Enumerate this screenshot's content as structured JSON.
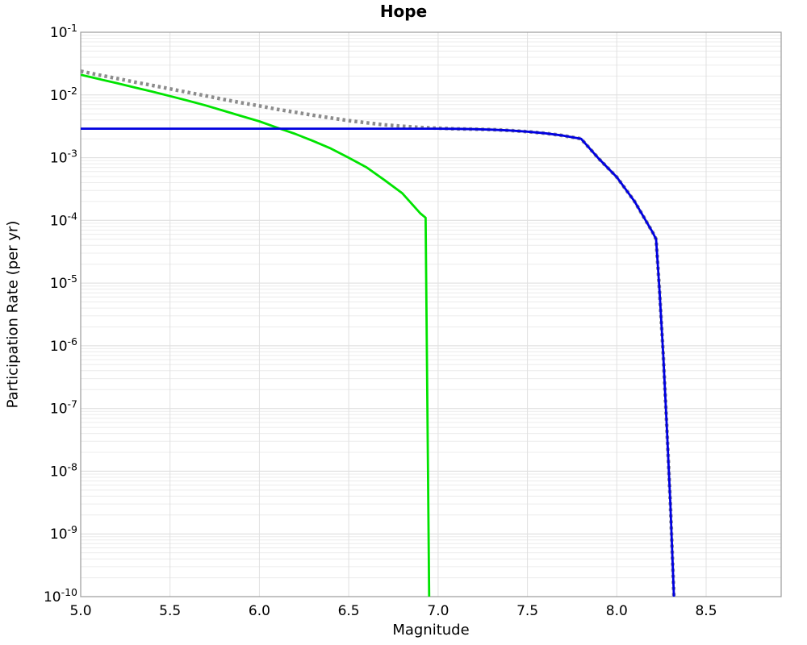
{
  "chart_data": {
    "type": "line",
    "title": "Hope",
    "xlabel": "Magnitude",
    "ylabel": "Participation Rate (per yr)",
    "legend": "none",
    "grid": {
      "major": true,
      "minor": true
    },
    "x_axis": {
      "min": 5.0,
      "max": 8.92,
      "scale": "linear",
      "ticks": [
        5.0,
        5.5,
        6.0,
        6.5,
        7.0,
        7.5,
        8.0,
        8.5
      ],
      "tick_labels": [
        "5.0",
        "5.5",
        "6.0",
        "6.5",
        "7.0",
        "7.5",
        "8.0",
        "8.5"
      ]
    },
    "y_axis": {
      "min": 1e-10,
      "max": 0.1,
      "scale": "log",
      "tick_exponents": [
        -1,
        -2,
        -3,
        -4,
        -5,
        -6,
        -7,
        -8,
        -9,
        -10
      ],
      "tick_base": "10"
    },
    "series": [
      {
        "name": "gray-dotted-total",
        "color": "#8c8c8c",
        "style": "dotted",
        "width": 4.5,
        "points": [
          [
            5.0,
            0.0239
          ],
          [
            5.1,
            0.0209
          ],
          [
            5.2,
            0.0184
          ],
          [
            5.3,
            0.0161
          ],
          [
            5.4,
            0.0142
          ],
          [
            5.5,
            0.0125
          ],
          [
            5.6,
            0.011
          ],
          [
            5.7,
            0.0097
          ],
          [
            5.8,
            0.0085
          ],
          [
            5.9,
            0.0075
          ],
          [
            6.0,
            0.0067
          ],
          [
            6.1,
            0.0059
          ],
          [
            6.2,
            0.0053
          ],
          [
            6.3,
            0.00475
          ],
          [
            6.4,
            0.0043
          ],
          [
            6.5,
            0.0039
          ],
          [
            6.6,
            0.0036
          ],
          [
            6.7,
            0.00334
          ],
          [
            6.8,
            0.00317
          ],
          [
            6.9,
            0.00303
          ],
          [
            7.0,
            0.00295
          ],
          [
            7.1,
            0.00288
          ],
          [
            7.2,
            0.00285
          ],
          [
            7.3,
            0.0028
          ],
          [
            7.4,
            0.00272
          ],
          [
            7.5,
            0.0026
          ],
          [
            7.6,
            0.00245
          ],
          [
            7.7,
            0.00225
          ],
          [
            7.8,
            0.002
          ],
          [
            7.9,
            0.00096
          ],
          [
            8.0,
            0.00049
          ],
          [
            8.1,
            0.0002
          ],
          [
            8.2,
            6.5e-05
          ],
          [
            8.22,
            5e-05
          ],
          [
            8.24,
            7e-06
          ],
          [
            8.26,
            7e-07
          ],
          [
            8.28,
            5e-08
          ],
          [
            8.3,
            3e-09
          ],
          [
            8.32,
            1e-10
          ]
        ]
      },
      {
        "name": "green-solid",
        "color": "#00e300",
        "style": "solid",
        "width": 2.8,
        "points": [
          [
            5.0,
            0.021
          ],
          [
            5.1,
            0.018
          ],
          [
            5.2,
            0.0155
          ],
          [
            5.3,
            0.0132
          ],
          [
            5.4,
            0.0113
          ],
          [
            5.5,
            0.0096
          ],
          [
            5.6,
            0.0081
          ],
          [
            5.7,
            0.0068
          ],
          [
            5.8,
            0.0056
          ],
          [
            5.9,
            0.0046
          ],
          [
            6.0,
            0.0038
          ],
          [
            6.1,
            0.003
          ],
          [
            6.2,
            0.0024
          ],
          [
            6.3,
            0.00185
          ],
          [
            6.4,
            0.0014
          ],
          [
            6.5,
            0.001
          ],
          [
            6.6,
            0.0007
          ],
          [
            6.7,
            0.00044
          ],
          [
            6.8,
            0.00027
          ],
          [
            6.9,
            0.00013
          ],
          [
            6.93,
            0.00011
          ],
          [
            6.95,
            1e-10
          ]
        ]
      },
      {
        "name": "blue-solid",
        "color": "#0000e0",
        "style": "solid",
        "width": 2.8,
        "points": [
          [
            5.0,
            0.0029
          ],
          [
            7.0,
            0.0029
          ],
          [
            7.1,
            0.00288
          ],
          [
            7.2,
            0.00285
          ],
          [
            7.3,
            0.0028
          ],
          [
            7.4,
            0.00272
          ],
          [
            7.5,
            0.0026
          ],
          [
            7.6,
            0.00245
          ],
          [
            7.7,
            0.00225
          ],
          [
            7.8,
            0.002
          ],
          [
            7.9,
            0.00096
          ],
          [
            8.0,
            0.00049
          ],
          [
            8.1,
            0.0002
          ],
          [
            8.2,
            6.5e-05
          ],
          [
            8.22,
            5e-05
          ],
          [
            8.24,
            7e-06
          ],
          [
            8.26,
            7e-07
          ],
          [
            8.28,
            5e-08
          ],
          [
            8.3,
            3e-09
          ],
          [
            8.32,
            1e-10
          ]
        ]
      }
    ],
    "style_colors": {
      "background": "#ffffff",
      "spine": "#9b9b9b",
      "grid_major": "#dcdcdc",
      "grid_minor": "#ececec",
      "grid_vertical": "#e0e0e0"
    }
  }
}
